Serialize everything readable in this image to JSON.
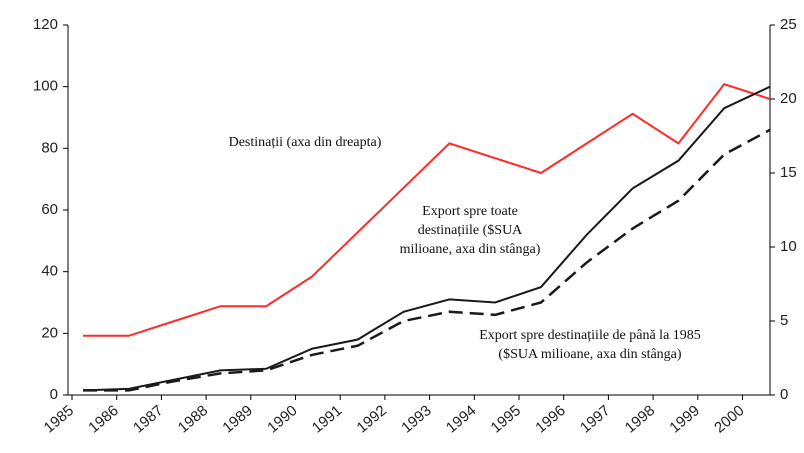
{
  "chart_data": {
    "type": "line",
    "categories": [
      "1985",
      "1986",
      "1987",
      "1988",
      "1989",
      "1990",
      "1991",
      "1992",
      "1993",
      "1994",
      "1995",
      "1996",
      "1997",
      "1998",
      "1999",
      "2000"
    ],
    "series": [
      {
        "color": "#ff2a2a",
        "axis": "y2",
        "dash": false,
        "values": [
          4,
          4,
          5,
          6,
          6,
          8,
          11,
          14,
          17,
          16,
          15,
          17,
          19,
          17,
          21,
          20
        ]
      },
      {
        "color": "#1a1a1a",
        "axis": "y",
        "dash": false,
        "values": [
          1.5,
          2,
          5,
          8,
          8.5,
          15,
          18,
          27,
          31,
          30,
          35,
          52,
          67,
          76,
          93,
          100
        ]
      },
      {
        "color": "#1a1a1a",
        "axis": "y",
        "dash": true,
        "values": [
          1.5,
          1.5,
          4.5,
          7,
          8,
          13,
          16,
          24,
          27,
          26,
          30,
          43,
          54,
          63,
          78,
          86
        ]
      }
    ],
    "annotations": [
      {
        "lines": [
          "Destinații (axa din dreapta)"
        ]
      },
      {
        "lines": [
          "Export spre toate",
          "destinațiile ($SUA",
          "milioane, axa din stânga)"
        ]
      },
      {
        "lines": [
          "Export spre destinațiile de până la 1985",
          "($SUA milioane, axa din stânga)"
        ]
      }
    ],
    "ylim": [
      0,
      120
    ],
    "yticks": [
      0,
      20,
      40,
      60,
      80,
      100,
      120
    ],
    "y2lim": [
      0,
      25
    ],
    "y2ticks": [
      0,
      5,
      10,
      15,
      20,
      25
    ]
  }
}
